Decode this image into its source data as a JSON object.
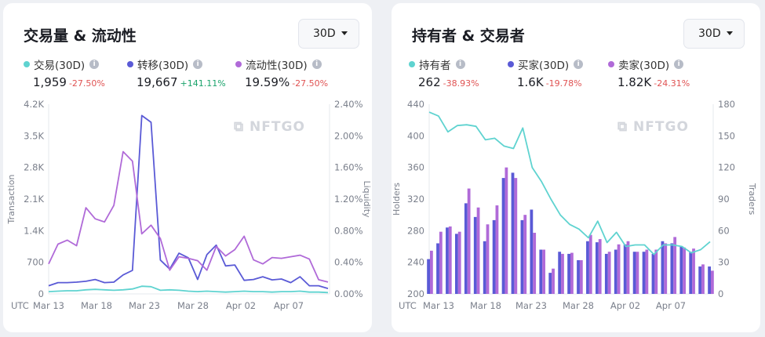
{
  "left": {
    "title": "交易量 & 流动性",
    "period": "30D",
    "stats": [
      {
        "label": "交易(30D)",
        "value": "1,959",
        "change": "-27.50%",
        "dir": "neg",
        "color": "#5fd3d0"
      },
      {
        "label": "转移(30D)",
        "value": "19,667",
        "change": "+141.11%",
        "dir": "pos",
        "color": "#5a5ad6"
      },
      {
        "label": "流动性(30D)",
        "value": "19.59%",
        "change": "-27.50%",
        "dir": "neg",
        "color": "#b06ad8"
      }
    ]
  },
  "right": {
    "title": "持有者 & 交易者",
    "period": "30D",
    "stats": [
      {
        "label": "持有者",
        "value": "262",
        "change": "-38.93%",
        "dir": "neg",
        "color": "#5fd3d0"
      },
      {
        "label": "买家(30D)",
        "value": "1.6K",
        "change": "-19.78%",
        "dir": "neg",
        "color": "#5a5ad6"
      },
      {
        "label": "卖家(30D)",
        "value": "1.82K",
        "change": "-24.31%",
        "dir": "neg",
        "color": "#b06ad8"
      }
    ]
  },
  "watermark": "NFTGO",
  "chart_data": [
    {
      "type": "line",
      "x_ticks": [
        "UTC",
        "Mar 13",
        "Mar 18",
        "Mar 23",
        "Mar 28",
        "Apr 02",
        "Apr 07"
      ],
      "ylabel": "Transaction",
      "y2label": "Liquidity",
      "y_ticks": [
        "0",
        "700",
        "1.4K",
        "2.1K",
        "2.8K",
        "3.5K",
        "4.2K"
      ],
      "y2_ticks": [
        "0.00%",
        "0.40%",
        "0.80%",
        "1.20%",
        "1.60%",
        "2.00%",
        "2.40%"
      ],
      "ylim": [
        0,
        4200
      ],
      "y2lim": [
        0,
        2.4
      ],
      "series": [
        {
          "name": "交易(30D)",
          "axis": "left",
          "color": "#5fd3d0",
          "values": [
            50,
            60,
            70,
            70,
            90,
            100,
            90,
            80,
            90,
            110,
            170,
            160,
            80,
            90,
            80,
            60,
            50,
            60,
            50,
            40,
            50,
            60,
            50,
            50,
            40,
            50,
            50,
            60,
            40,
            40,
            30
          ]
        },
        {
          "name": "转移(30D)",
          "axis": "left",
          "color": "#5a5ad6",
          "values": [
            180,
            250,
            250,
            260,
            280,
            320,
            250,
            260,
            420,
            520,
            3950,
            3800,
            750,
            550,
            900,
            800,
            320,
            870,
            1080,
            620,
            640,
            300,
            320,
            380,
            310,
            330,
            250,
            380,
            180,
            180,
            120
          ]
        },
        {
          "name": "流动性(30D)",
          "axis": "right",
          "color": "#b06ad8",
          "values": [
            0.38,
            0.63,
            0.68,
            0.61,
            1.09,
            0.95,
            0.91,
            1.12,
            1.8,
            1.68,
            0.76,
            0.87,
            0.7,
            0.3,
            0.47,
            0.45,
            0.42,
            0.3,
            0.6,
            0.48,
            0.56,
            0.73,
            0.43,
            0.38,
            0.46,
            0.45,
            0.47,
            0.49,
            0.44,
            0.18,
            0.15
          ]
        }
      ]
    },
    {
      "type": "bar",
      "x_ticks": [
        "UTC",
        "Mar 13",
        "Mar 18",
        "Mar 23",
        "Mar 28",
        "Apr 02",
        "Apr 07"
      ],
      "ylabel": "Holders",
      "y2label": "Traders",
      "y_ticks": [
        "200",
        "240",
        "280",
        "320",
        "360",
        "400",
        "440"
      ],
      "y2_ticks": [
        "0",
        "30",
        "60",
        "90",
        "120",
        "150",
        "180"
      ],
      "ylim": [
        200,
        440
      ],
      "y2lim": [
        0,
        180
      ],
      "series": [
        {
          "name": "持有者",
          "type": "line",
          "axis": "left",
          "color": "#5fd3d0",
          "values": [
            430,
            425,
            405,
            413,
            414,
            412,
            395,
            397,
            387,
            384,
            410,
            360,
            342,
            320,
            300,
            288,
            282,
            271,
            292,
            265,
            278,
            260,
            262,
            262,
            250,
            262,
            262,
            260,
            252,
            256,
            266
          ]
        },
        {
          "name": "买家(30D)",
          "type": "bar",
          "axis": "right",
          "color": "#5a5ad6",
          "values": [
            33,
            48,
            63,
            57,
            86,
            73,
            50,
            70,
            110,
            115,
            70,
            80,
            42,
            20,
            40,
            38,
            32,
            50,
            49,
            38,
            42,
            47,
            40,
            40,
            38,
            50,
            48,
            45,
            40,
            26,
            26
          ]
        },
        {
          "name": "卖家(30D)",
          "type": "bar",
          "axis": "right",
          "color": "#b06ad8",
          "values": [
            41,
            59,
            64,
            59,
            100,
            82,
            66,
            84,
            120,
            110,
            75,
            58,
            42,
            24,
            38,
            39,
            32,
            56,
            52,
            40,
            47,
            50,
            40,
            42,
            42,
            48,
            54,
            44,
            43,
            28,
            22
          ]
        }
      ]
    }
  ]
}
